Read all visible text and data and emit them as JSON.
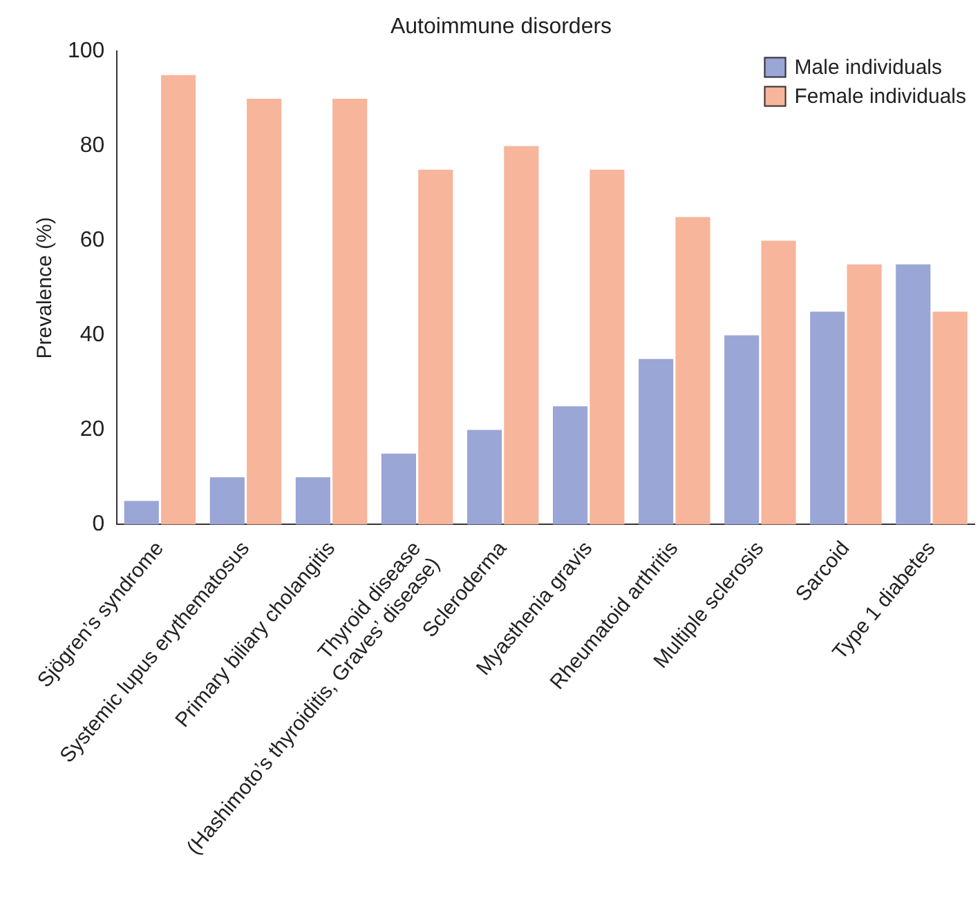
{
  "chart_data": {
    "type": "bar",
    "title": "Autoimmune disorders",
    "ylabel": "Prevalence (%)",
    "categories": [
      "Sjögren’s syndrome",
      "Systemic lupus erythematosus",
      "Primary biliary cholangitis",
      "Thyroid disease\n(Hashimoto’s thyroiditis, Graves’ disease)",
      "Scleroderma",
      "Myasthenia gravis",
      "Rheumatoid arthritis",
      "Multiple sclerosis",
      "Sarcoid",
      "Type 1 diabetes"
    ],
    "series": [
      {
        "name": "Male individuals",
        "color": "#9aa6d6",
        "values": [
          5,
          10,
          10,
          15,
          20,
          25,
          35,
          40,
          45,
          55
        ]
      },
      {
        "name": "Female individuals",
        "color": "#f7b59b",
        "values": [
          95,
          90,
          90,
          75,
          80,
          75,
          65,
          60,
          55,
          45
        ]
      }
    ],
    "ylim": [
      0,
      100
    ],
    "yticks": [
      0,
      20,
      40,
      60,
      80,
      100
    ],
    "grid": false,
    "legend": "top right"
  }
}
